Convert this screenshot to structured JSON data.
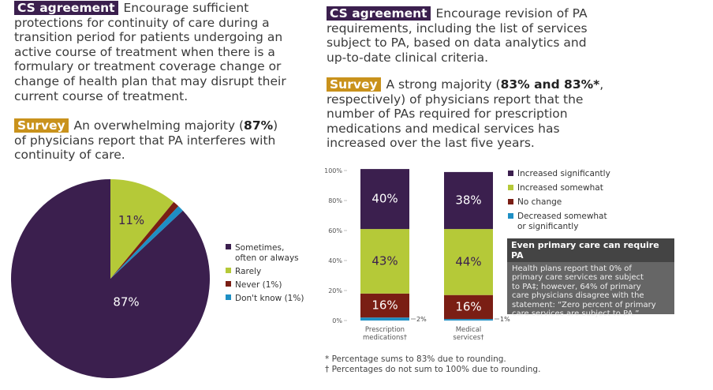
{
  "left": {
    "cs": {
      "tag": "CS agreement",
      "lines": [
        "Encourage sufficient",
        "protections for continuity of care during a",
        "transition period for patients undergoing an",
        "active course of treatment when there is a",
        "formulary or treatment coverage change or",
        "change of health plan that may disrupt their",
        "current course of treatment."
      ]
    },
    "survey": {
      "tag": "Survey",
      "line1_pre": "An overwhelming majority (",
      "line1_bold": "87%",
      "line1_post": ")",
      "lines": [
        "of physicians report that PA interferes with",
        "continuity of care."
      ]
    }
  },
  "right": {
    "cs": {
      "tag": "CS agreement",
      "line1": "Encourage revision of PA",
      "lines": [
        "requirements, including the list of services",
        "subject to PA, based on data analytics and",
        "up-to-date clinical criteria."
      ]
    },
    "survey": {
      "tag": "Survey",
      "line1_pre": "A strong majority (",
      "line1_bold": "83% and 83%*",
      "line1_post": ",",
      "lines": [
        "respectively) of physicians report that the",
        "number of PAs required for prescription",
        "medications and medical services has",
        "increased over the last five years."
      ]
    }
  },
  "callout": {
    "title": "Even primary care can require PA",
    "lines": [
      "Health plans report that 0% of",
      "primary care services are subject",
      "to PA‡; however, 64% of primary",
      "care physicians disagree with the",
      "statement: “Zero percent of primary",
      "care services are subject to PA.”"
    ]
  },
  "footnotes": [
    "* Percentage sums to 83% due to rounding.",
    "† Percentages do not sum to 100% due to rounding."
  ],
  "chart_data": [
    {
      "type": "pie",
      "labels": [
        "Sometimes, often or always",
        "Rarely",
        "Never (1%)",
        "Don't know (1%)"
      ],
      "legend_lines": [
        [
          "Sometimes,",
          "often or always"
        ],
        [
          "Rarely"
        ],
        [
          "Never (1%)"
        ],
        [
          "Don't know (1%)"
        ]
      ],
      "values": [
        87,
        11,
        1,
        1
      ],
      "slice_labels": [
        "87%",
        "11%",
        "",
        ""
      ],
      "colors": [
        "#3b1f4e",
        "#b5c938",
        "#7a1e14",
        "#1e8fc4"
      ],
      "legend_position": "right"
    },
    {
      "type": "bar",
      "stacked": true,
      "categories": [
        [
          "Prescription",
          "medications†"
        ],
        [
          "Medical",
          "services†"
        ]
      ],
      "series": [
        {
          "name": "Decreased somewhat or significantly",
          "legend_lines": [
            "Decreased somewhat",
            "or significantly"
          ],
          "values": [
            2,
            1
          ],
          "labels": [
            "2%",
            "1%"
          ],
          "color": "#1e8fc4"
        },
        {
          "name": "No change",
          "legend_lines": [
            "No change"
          ],
          "values": [
            16,
            16
          ],
          "labels": [
            "16%",
            "16%"
          ],
          "color": "#7a1e14"
        },
        {
          "name": "Increased somewhat",
          "legend_lines": [
            "Increased somewhat"
          ],
          "values": [
            43,
            44
          ],
          "labels": [
            "43%",
            "44%"
          ],
          "color": "#b5c938"
        },
        {
          "name": "Increased significantly",
          "legend_lines": [
            "Increased significantly"
          ],
          "values": [
            40,
            38
          ],
          "labels": [
            "40%",
            "38%"
          ],
          "color": "#3b1f4e"
        }
      ],
      "legend_order": [
        3,
        2,
        1,
        0
      ],
      "y_ticks": [
        "0%",
        "20%",
        "40%",
        "60%",
        "80%",
        "100%"
      ],
      "ylim": [
        0,
        100
      ],
      "legend_position": "right"
    }
  ]
}
